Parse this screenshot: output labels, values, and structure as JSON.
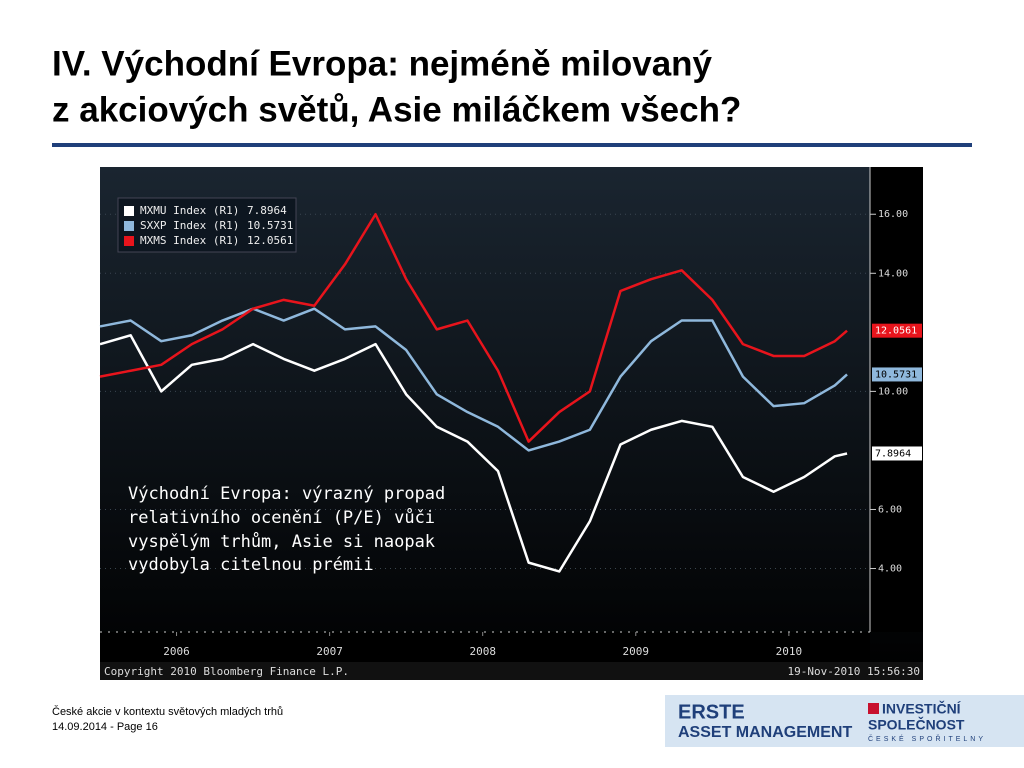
{
  "slide": {
    "title": [
      "IV. Východní Evropa: nejméně milovaný",
      "z akciových světů, Asie miláčkem všech?"
    ],
    "footer": [
      "České akcie v kontextu světových mladých trhů",
      "14.09.2014 - Page 16"
    ],
    "logo": {
      "left": [
        "ERSTE",
        "ASSET MANAGEMENT"
      ],
      "right": [
        "INVESTIČNÍ",
        "SPOLEČNOST",
        "ČESKÉ SPOŘITELNY"
      ]
    }
  },
  "chart_data": {
    "type": "line",
    "annotation": [
      "Východní Evropa: výrazný propad",
      "relativního ocenění (P/E) vůči",
      "vyspělým trhům, Asie si naopak",
      "vydobyla citelnou prémii"
    ],
    "source": "Copyright 2010 Bloomberg Finance L.P.",
    "timestamp": "19-Nov-2010 15:56:30",
    "x": [
      2006.0,
      2006.2,
      2006.4,
      2006.6,
      2006.8,
      2007.0,
      2007.2,
      2007.4,
      2007.6,
      2007.8,
      2008.0,
      2008.2,
      2008.4,
      2008.6,
      2008.8,
      2009.0,
      2009.2,
      2009.4,
      2009.6,
      2009.8,
      2010.0,
      2010.2,
      2010.4,
      2010.6,
      2010.8,
      2010.88
    ],
    "series": [
      {
        "name": "MXMU Index (R1)",
        "color": "#ffffff",
        "values": [
          11.6,
          11.9,
          10.0,
          10.9,
          11.1,
          11.6,
          11.1,
          10.7,
          11.1,
          11.6,
          9.9,
          8.8,
          8.3,
          7.3,
          4.2,
          3.9,
          5.6,
          8.2,
          8.7,
          9.0,
          8.8,
          7.1,
          6.6,
          7.1,
          7.8,
          7.8964
        ]
      },
      {
        "name": "SXXP Index (R1)",
        "color": "#8fb8dc",
        "values": [
          12.2,
          12.4,
          11.7,
          11.9,
          12.4,
          12.8,
          12.4,
          12.8,
          12.1,
          12.2,
          11.4,
          9.9,
          9.3,
          8.8,
          8.0,
          8.3,
          8.7,
          10.5,
          11.7,
          12.4,
          12.4,
          10.5,
          9.5,
          9.6,
          10.2,
          10.5731
        ]
      },
      {
        "name": "MXMS Index (R1)",
        "color": "#e8141c",
        "values": [
          10.5,
          10.7,
          10.9,
          11.6,
          12.1,
          12.8,
          13.1,
          12.9,
          14.3,
          16.0,
          13.8,
          12.1,
          12.4,
          10.7,
          8.3,
          9.3,
          10.0,
          13.4,
          13.8,
          14.1,
          13.1,
          11.6,
          11.2,
          11.2,
          11.7,
          12.0561
        ]
      }
    ],
    "xlim": [
      2006,
      2011.03
    ],
    "ylim": [
      1.85,
      17.6
    ],
    "xticks": [
      {
        "value": 2006.5,
        "label": "2006"
      },
      {
        "value": 2007.5,
        "label": "2007"
      },
      {
        "value": 2008.5,
        "label": "2008"
      },
      {
        "value": 2009.5,
        "label": "2009"
      },
      {
        "value": 2010.5,
        "label": "2010"
      }
    ],
    "yticks": [
      {
        "value": 4,
        "label": "4.00"
      },
      {
        "value": 6,
        "label": "6.00"
      },
      {
        "value": 10,
        "label": "10.00"
      },
      {
        "value": 14,
        "label": "14.00"
      },
      {
        "value": 16,
        "label": "16.00"
      }
    ],
    "grid": true,
    "legend": "top-left"
  }
}
